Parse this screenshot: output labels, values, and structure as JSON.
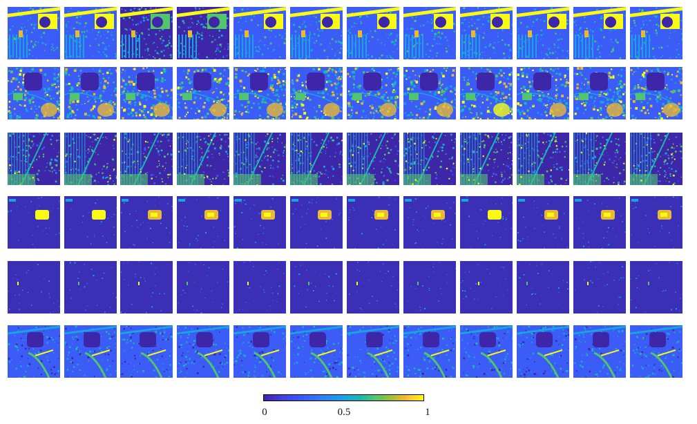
{
  "figure": {
    "rows": [
      {
        "pattern": "urban-grid-bright-field"
      },
      {
        "pattern": "circular-field-mottled-vegetation"
      },
      {
        "pattern": "dense-street-grid"
      },
      {
        "pattern": "single-bright-block"
      },
      {
        "pattern": "sparse-points"
      },
      {
        "pattern": "diagonal-river-outline"
      }
    ],
    "columns": 12,
    "colormap": {
      "min_label": "0",
      "mid_label": "0.5",
      "max_label": "1",
      "colors": [
        "#3e26a8",
        "#2d7ff5",
        "#18a4e0",
        "#52c46c",
        "#fcd62d",
        "#f9fb15"
      ]
    }
  }
}
